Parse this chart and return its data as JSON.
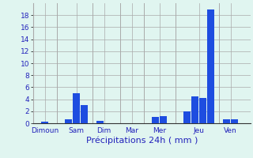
{
  "x_positions": [
    1,
    4,
    5,
    6,
    8,
    9,
    12,
    15,
    16,
    19,
    20,
    21,
    22,
    24,
    25
  ],
  "values": [
    0.3,
    0.7,
    5.0,
    3.0,
    0.4,
    0.0,
    0.0,
    1.0,
    1.2,
    2.0,
    4.5,
    4.2,
    19.0,
    0.7,
    0.6
  ],
  "bar_color": "#1e4de0",
  "background_color": "#e0f5f0",
  "grid_color": "#aaaaaa",
  "tick_color": "#2222bb",
  "xlabel": "Précipitations 24h ( mm )",
  "xlabel_color": "#2222bb",
  "xlabel_fontsize": 8,
  "tick_labels": [
    "Dimoun",
    "Sam",
    "Dim",
    "Mar",
    "Mer",
    "Jeu",
    "Ven"
  ],
  "tick_positions": [
    1,
    5,
    8.5,
    12,
    15.5,
    20.5,
    24.5
  ],
  "xlim": [
    -0.5,
    27
  ],
  "ylim": [
    0,
    20
  ],
  "yticks": [
    0,
    2,
    4,
    6,
    8,
    10,
    12,
    14,
    16,
    18
  ],
  "bar_width": 0.9,
  "dividers": [
    2.5,
    7.0,
    10.5,
    13.5,
    17.5,
    23.0
  ]
}
